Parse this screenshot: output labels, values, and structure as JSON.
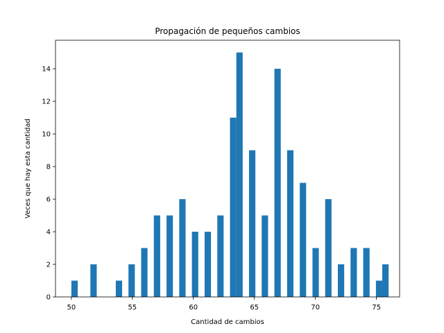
{
  "chart_data": {
    "type": "bar",
    "title": "Propagación de pequeños cambios",
    "xlabel": "Cantidad de cambios",
    "ylabel": "Veces que hay esta cantidad",
    "xlim": [
      48.7,
      76.9
    ],
    "ylim": [
      0,
      15.75
    ],
    "xticks": [
      50,
      55,
      60,
      65,
      70,
      75
    ],
    "yticks": [
      0,
      2,
      4,
      6,
      8,
      10,
      12,
      14
    ],
    "bar_width": 0.52,
    "grid": false,
    "legend": "none",
    "color": "#1f77b4",
    "bars": [
      {
        "x": 50.26,
        "value": 1
      },
      {
        "x": 51.82,
        "value": 2
      },
      {
        "x": 53.9,
        "value": 1
      },
      {
        "x": 54.94,
        "value": 2
      },
      {
        "x": 55.98,
        "value": 3
      },
      {
        "x": 57.02,
        "value": 5
      },
      {
        "x": 58.06,
        "value": 5
      },
      {
        "x": 59.1,
        "value": 6
      },
      {
        "x": 60.14,
        "value": 4
      },
      {
        "x": 61.18,
        "value": 4
      },
      {
        "x": 62.22,
        "value": 5
      },
      {
        "x": 63.26,
        "value": 11
      },
      {
        "x": 63.78,
        "value": 15
      },
      {
        "x": 64.82,
        "value": 9
      },
      {
        "x": 65.86,
        "value": 5
      },
      {
        "x": 66.9,
        "value": 14
      },
      {
        "x": 67.94,
        "value": 9
      },
      {
        "x": 68.98,
        "value": 7
      },
      {
        "x": 70.02,
        "value": 3
      },
      {
        "x": 71.06,
        "value": 6
      },
      {
        "x": 72.1,
        "value": 2
      },
      {
        "x": 73.14,
        "value": 3
      },
      {
        "x": 74.18,
        "value": 3
      },
      {
        "x": 75.22,
        "value": 1
      },
      {
        "x": 75.74,
        "value": 2
      }
    ]
  }
}
